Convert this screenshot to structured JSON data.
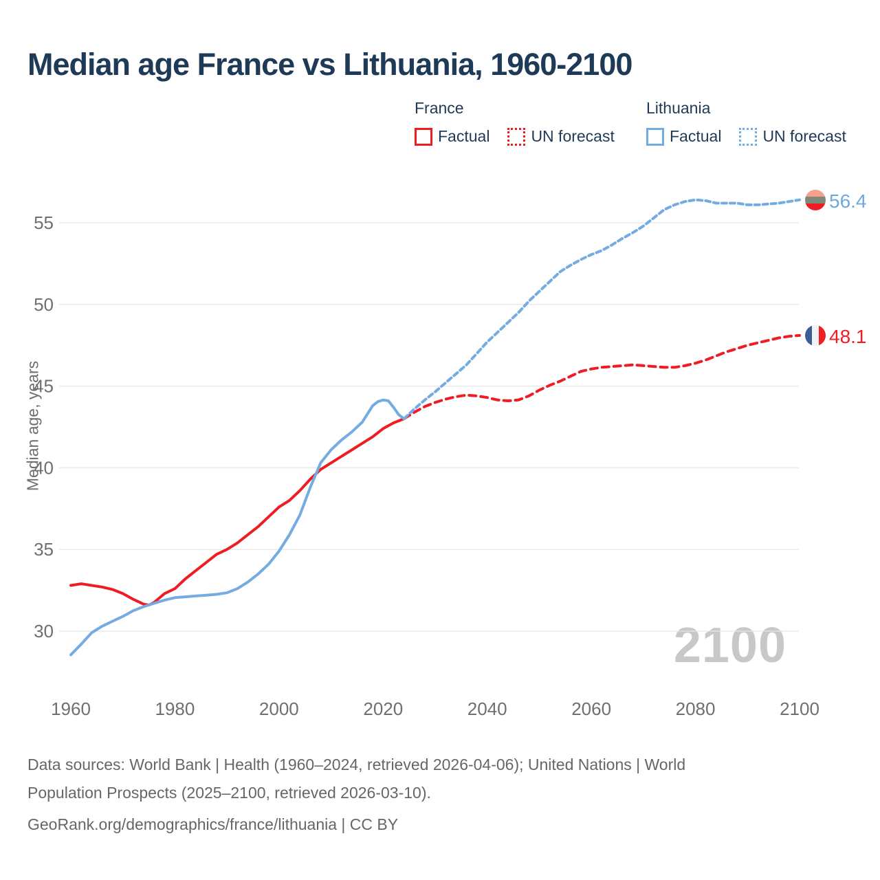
{
  "page": {
    "title": "Median age France vs Lithuania, 1960-2100"
  },
  "legend": {
    "france": {
      "header": "France",
      "factual": "Factual",
      "forecast": "UN forecast"
    },
    "lithuania": {
      "header": "Lithuania",
      "factual": "Factual",
      "forecast": "UN forecast"
    }
  },
  "colors": {
    "red": "#ee1d23",
    "blue": "#74ace2",
    "blue_label": "#6fa8e0",
    "navy": "#1e3a57",
    "tick_gray": "#6f6f6f",
    "gridline": "#e8e8e8",
    "watermark_gray": "#c8c8c8"
  },
  "flags": {
    "lithuania_stripes": [
      "#f4a18b",
      "#7d897b",
      "#ee1c24"
    ],
    "france_stripes": [
      "#3e5b94",
      "#f2f2f4",
      "#ed2024"
    ]
  },
  "chart_data": {
    "type": "line",
    "title": "Median age France vs Lithuania, 1960-2100",
    "xlabel": "",
    "ylabel": "Median age, years",
    "watermark": "2100",
    "xlim": [
      1960,
      2100
    ],
    "ylim": [
      30,
      55
    ],
    "x_ticks": [
      1960,
      1980,
      2000,
      2020,
      2040,
      2060,
      2080,
      2100
    ],
    "y_ticks": [
      55,
      50,
      45,
      40,
      35,
      30
    ],
    "grid": "horizontal-only",
    "legend_position": "top-right",
    "series": [
      {
        "name": "France factual",
        "color": "#ee1d23",
        "style": "solid",
        "points": [
          [
            1960,
            32.8
          ],
          [
            1961,
            32.85
          ],
          [
            1962,
            32.9
          ],
          [
            1963,
            32.85
          ],
          [
            1964,
            32.8
          ],
          [
            1966,
            32.7
          ],
          [
            1968,
            32.55
          ],
          [
            1970,
            32.3
          ],
          [
            1972,
            31.95
          ],
          [
            1974,
            31.65
          ],
          [
            1975,
            31.6
          ],
          [
            1976,
            31.75
          ],
          [
            1978,
            32.3
          ],
          [
            1980,
            32.6
          ],
          [
            1982,
            33.2
          ],
          [
            1984,
            33.7
          ],
          [
            1986,
            34.2
          ],
          [
            1988,
            34.7
          ],
          [
            1990,
            35.0
          ],
          [
            1992,
            35.4
          ],
          [
            1994,
            35.9
          ],
          [
            1996,
            36.4
          ],
          [
            1998,
            37.0
          ],
          [
            2000,
            37.6
          ],
          [
            2002,
            38.0
          ],
          [
            2004,
            38.6
          ],
          [
            2006,
            39.3
          ],
          [
            2008,
            39.9
          ],
          [
            2010,
            40.3
          ],
          [
            2012,
            40.7
          ],
          [
            2014,
            41.1
          ],
          [
            2016,
            41.5
          ],
          [
            2018,
            41.9
          ],
          [
            2020,
            42.4
          ],
          [
            2022,
            42.75
          ],
          [
            2024,
            43.0
          ]
        ]
      },
      {
        "name": "France UN forecast",
        "color": "#ee1d23",
        "style": "dashed",
        "points": [
          [
            2024,
            43.0
          ],
          [
            2026,
            43.4
          ],
          [
            2028,
            43.75
          ],
          [
            2030,
            44.0
          ],
          [
            2032,
            44.2
          ],
          [
            2034,
            44.35
          ],
          [
            2036,
            44.45
          ],
          [
            2038,
            44.4
          ],
          [
            2040,
            44.3
          ],
          [
            2042,
            44.15
          ],
          [
            2044,
            44.1
          ],
          [
            2046,
            44.15
          ],
          [
            2048,
            44.4
          ],
          [
            2050,
            44.75
          ],
          [
            2052,
            45.05
          ],
          [
            2054,
            45.3
          ],
          [
            2056,
            45.6
          ],
          [
            2058,
            45.9
          ],
          [
            2060,
            46.05
          ],
          [
            2062,
            46.15
          ],
          [
            2064,
            46.2
          ],
          [
            2066,
            46.25
          ],
          [
            2068,
            46.3
          ],
          [
            2070,
            46.25
          ],
          [
            2072,
            46.2
          ],
          [
            2074,
            46.15
          ],
          [
            2076,
            46.15
          ],
          [
            2078,
            46.25
          ],
          [
            2080,
            46.4
          ],
          [
            2082,
            46.6
          ],
          [
            2084,
            46.85
          ],
          [
            2086,
            47.1
          ],
          [
            2088,
            47.3
          ],
          [
            2090,
            47.5
          ],
          [
            2092,
            47.65
          ],
          [
            2094,
            47.8
          ],
          [
            2096,
            47.95
          ],
          [
            2098,
            48.05
          ],
          [
            2100,
            48.1
          ]
        ]
      },
      {
        "name": "Lithuania factual",
        "color": "#74ace2",
        "style": "solid",
        "points": [
          [
            1960,
            28.55
          ],
          [
            1962,
            29.2
          ],
          [
            1964,
            29.9
          ],
          [
            1966,
            30.3
          ],
          [
            1968,
            30.6
          ],
          [
            1970,
            30.9
          ],
          [
            1972,
            31.25
          ],
          [
            1974,
            31.5
          ],
          [
            1976,
            31.7
          ],
          [
            1978,
            31.9
          ],
          [
            1980,
            32.05
          ],
          [
            1982,
            32.1
          ],
          [
            1984,
            32.15
          ],
          [
            1986,
            32.2
          ],
          [
            1988,
            32.25
          ],
          [
            1990,
            32.35
          ],
          [
            1992,
            32.6
          ],
          [
            1994,
            33.0
          ],
          [
            1996,
            33.5
          ],
          [
            1998,
            34.1
          ],
          [
            2000,
            34.9
          ],
          [
            2002,
            35.9
          ],
          [
            2004,
            37.1
          ],
          [
            2006,
            38.8
          ],
          [
            2008,
            40.3
          ],
          [
            2010,
            41.1
          ],
          [
            2012,
            41.7
          ],
          [
            2014,
            42.2
          ],
          [
            2016,
            42.8
          ],
          [
            2018,
            43.8
          ],
          [
            2019,
            44.05
          ],
          [
            2020,
            44.15
          ],
          [
            2021,
            44.1
          ],
          [
            2022,
            43.7
          ],
          [
            2023,
            43.25
          ],
          [
            2024,
            43.0
          ]
        ]
      },
      {
        "name": "Lithuania UN forecast",
        "color": "#74ace2",
        "style": "dashed",
        "points": [
          [
            2024,
            43.0
          ],
          [
            2026,
            43.6
          ],
          [
            2028,
            44.15
          ],
          [
            2030,
            44.65
          ],
          [
            2032,
            45.2
          ],
          [
            2034,
            45.75
          ],
          [
            2036,
            46.3
          ],
          [
            2038,
            47.0
          ],
          [
            2040,
            47.7
          ],
          [
            2042,
            48.3
          ],
          [
            2044,
            48.9
          ],
          [
            2046,
            49.5
          ],
          [
            2048,
            50.2
          ],
          [
            2050,
            50.8
          ],
          [
            2052,
            51.4
          ],
          [
            2054,
            52.0
          ],
          [
            2056,
            52.4
          ],
          [
            2058,
            52.75
          ],
          [
            2060,
            53.05
          ],
          [
            2062,
            53.3
          ],
          [
            2064,
            53.65
          ],
          [
            2066,
            54.05
          ],
          [
            2068,
            54.4
          ],
          [
            2070,
            54.8
          ],
          [
            2072,
            55.3
          ],
          [
            2074,
            55.8
          ],
          [
            2076,
            56.1
          ],
          [
            2078,
            56.3
          ],
          [
            2080,
            56.4
          ],
          [
            2082,
            56.35
          ],
          [
            2084,
            56.2
          ],
          [
            2086,
            56.2
          ],
          [
            2088,
            56.2
          ],
          [
            2090,
            56.1
          ],
          [
            2092,
            56.1
          ],
          [
            2094,
            56.15
          ],
          [
            2096,
            56.2
          ],
          [
            2098,
            56.3
          ],
          [
            2100,
            56.4
          ]
        ]
      }
    ],
    "end_labels": [
      {
        "series": "Lithuania UN forecast",
        "text": "56.4",
        "value": 56.4,
        "flag": "lithuania"
      },
      {
        "series": "France UN forecast",
        "text": "48.1",
        "value": 48.1,
        "flag": "france"
      }
    ]
  },
  "footer": {
    "line1": "Data sources: World Bank | Health (1960–2024, retrieved 2026-04-06); United Nations | World",
    "line2": "Population Prospects (2025–2100, retrieved 2026-03-10).",
    "line3": "GeoRank.org/demographics/france/lithuania | CC BY"
  }
}
